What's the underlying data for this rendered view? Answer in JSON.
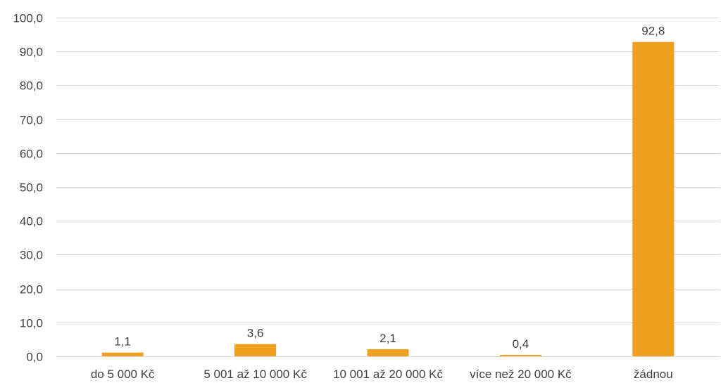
{
  "chart_data": {
    "type": "bar",
    "categories": [
      "do 5 000 Kč",
      "5 001 až 10 000 Kč",
      "10 001 až 20 000 Kč",
      "více než 20 000 Kč",
      "žádnou"
    ],
    "values": [
      1.1,
      3.6,
      2.1,
      0.4,
      92.8
    ],
    "value_labels": [
      "1,1",
      "3,6",
      "2,1",
      "0,4",
      "92,8"
    ],
    "y_ticks": [
      0,
      10,
      20,
      30,
      40,
      50,
      60,
      70,
      80,
      90,
      100
    ],
    "y_tick_labels": [
      "0,0",
      "10,0",
      "20,0",
      "30,0",
      "40,0",
      "50,0",
      "60,0",
      "70,0",
      "80,0",
      "90,0",
      "100,0"
    ],
    "ylim": [
      0,
      100
    ],
    "grid": true,
    "legend": "none",
    "title": "",
    "xlabel": "",
    "ylabel": ""
  },
  "colors": {
    "bar": "#F0A020",
    "grid": "#D9D9D9",
    "text": "#404040",
    "background": "#FFFFFF"
  }
}
